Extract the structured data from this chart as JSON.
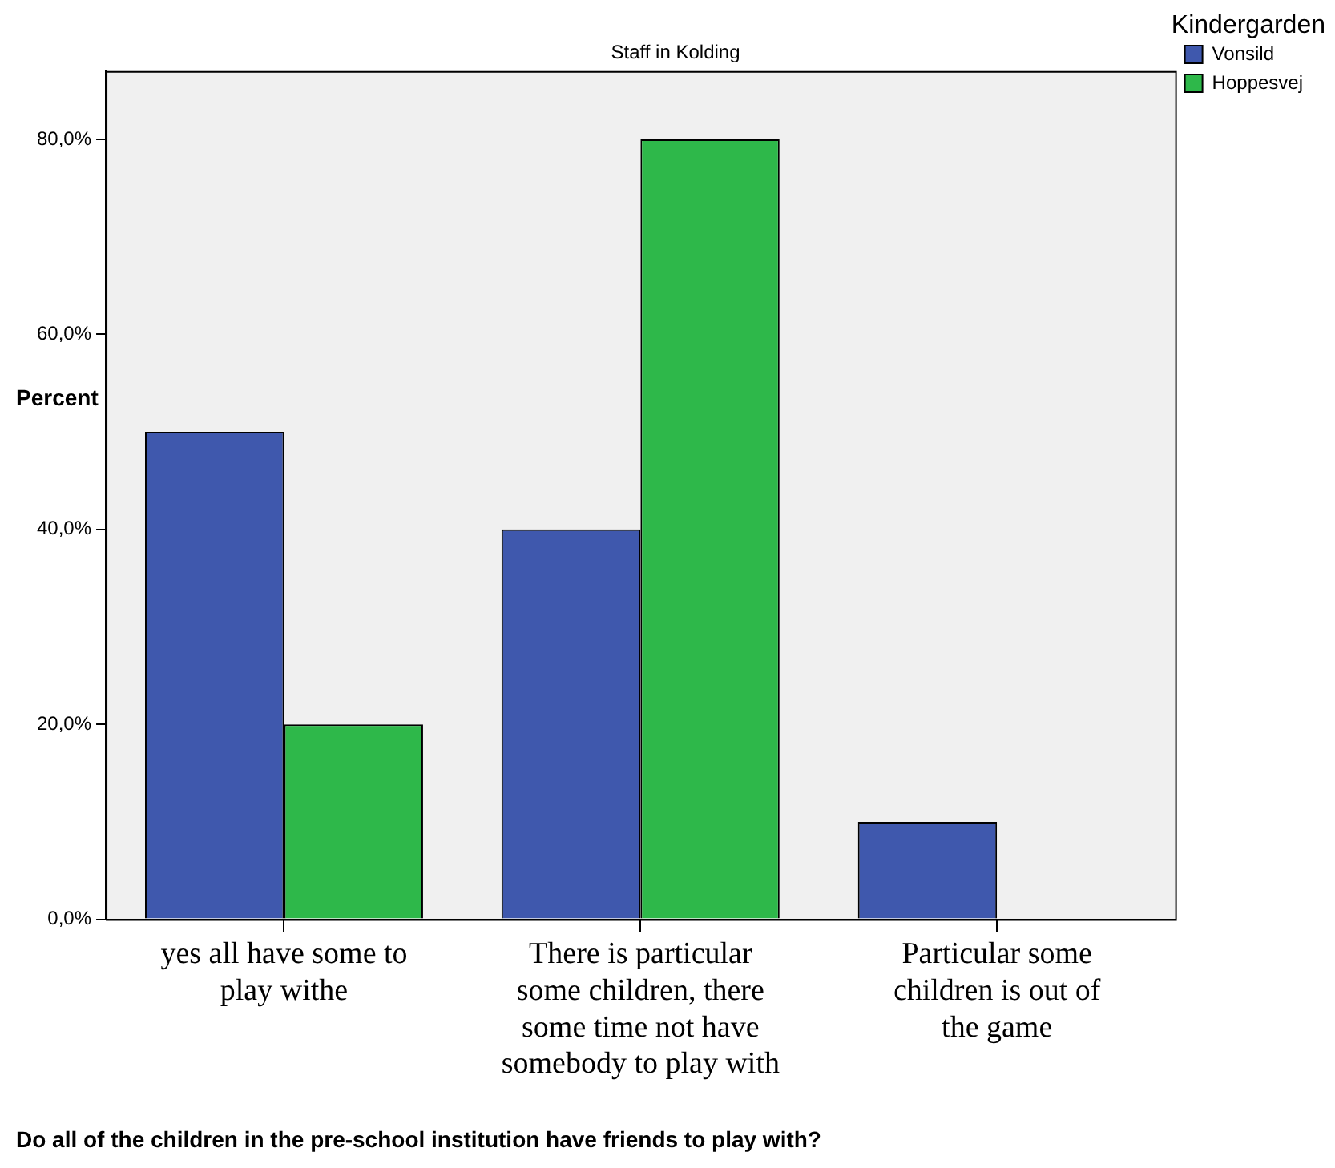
{
  "chart_data": {
    "type": "bar",
    "title": "Staff in Kolding",
    "xlabel": "Do all of the children in the pre-school institution have friends to play with?",
    "ylabel": "Percent",
    "legend_title": "Kindergarden",
    "categories": [
      "yes all have some to play withe",
      "There is particular some children, there some time not have somebody to play with",
      "Particular some children is out of the game"
    ],
    "series": [
      {
        "name": "Vonsild",
        "color": "#3f58ad",
        "values": [
          50,
          40,
          10
        ]
      },
      {
        "name": "Hoppesvej",
        "color": "#2eb84a",
        "values": [
          20,
          80,
          0
        ]
      }
    ],
    "ylim": [
      0,
      87
    ],
    "yticks": [
      {
        "value": 0,
        "label": "0,0%"
      },
      {
        "value": 20,
        "label": "20,0%"
      },
      {
        "value": 40,
        "label": "40,0%"
      },
      {
        "value": 60,
        "label": "60,0%"
      },
      {
        "value": 80,
        "label": "80,0%"
      }
    ],
    "grid": false,
    "legend": "top right"
  }
}
